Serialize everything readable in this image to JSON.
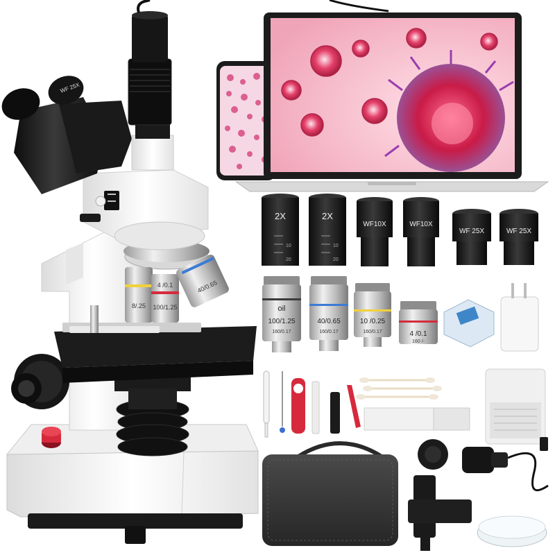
{
  "eyepieces": {
    "e1": "2X",
    "e2": "2X",
    "e3": "WF10X",
    "e4": "WF10X",
    "e5": "WF 25X",
    "e6": "WF 25X"
  },
  "eyepiece_scale": {
    "a": "10",
    "b": "20"
  },
  "scope_eyepiece": "WF 25X",
  "objectives": {
    "o1_top": "oil",
    "o1_mid": "100/1.25",
    "o1_bot": "160/0.17",
    "o2_mid": "40/0.65",
    "o2_bot": "160/0.17",
    "o3_mid": "10 /0.25",
    "o3_bot": "160/0.17",
    "o4_mid": "4 /0.1",
    "o4_bot": "160 /-"
  },
  "turret_objectives": {
    "t1": "4 /0.1",
    "t2": "40/0.65",
    "t3": "100/1.25",
    "t4": "8/.25"
  },
  "colors": {
    "accent_red": "#d62a3c",
    "microscope_white": "#f4f4f4",
    "black_body": "#1c1c1c",
    "screen_pink": "#f3b8c8"
  }
}
